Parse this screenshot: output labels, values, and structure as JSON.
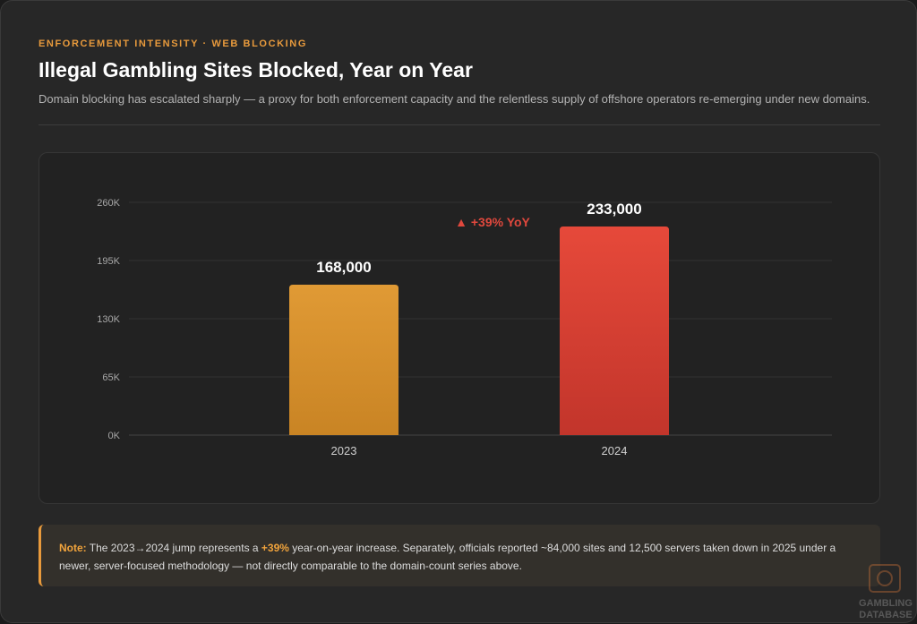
{
  "header": {
    "eyebrow": "ENFORCEMENT INTENSITY · WEB BLOCKING",
    "title": "Illegal Gambling Sites Blocked, Year on Year",
    "subtitle": "Domain blocking has escalated sharply — a proxy for both enforcement capacity and the relentless supply of offshore operators re-emerging under new domains."
  },
  "chart_data": {
    "type": "bar",
    "categories": [
      "2023",
      "2024"
    ],
    "values": [
      168000,
      233000
    ],
    "value_labels": [
      "168,000",
      "233,000"
    ],
    "ylim": [
      0,
      260000
    ],
    "yticks": [
      0,
      65000,
      130000,
      195000,
      260000
    ],
    "ytick_labels": [
      "0K",
      "65K",
      "130K",
      "195K",
      "260K"
    ],
    "annotation": "▲ +39% YoY",
    "grid": true,
    "colors": {
      "bar_2023_top": "#e09a35",
      "bar_2023_bottom": "#c98424",
      "bar_2024_top": "#e6493a",
      "bar_2024_bottom": "#c2352b",
      "annotation": "#e0483d"
    }
  },
  "note": {
    "lead": "Note:",
    "text_before": " The 2023→2024 jump represents a ",
    "highlight": "+39%",
    "text_after": " year-on-year increase. Separately, officials reported ~84,000 sites and 12,500 servers taken down in 2025 under a newer, server-focused methodology — not directly comparable to the domain-count series above."
  },
  "watermark": {
    "line1": "GAMBLING",
    "line2": "DATABASE"
  }
}
